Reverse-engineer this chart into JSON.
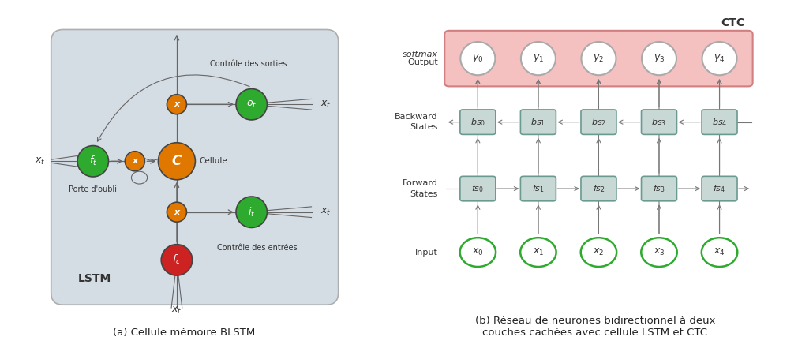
{
  "fig_width": 10.12,
  "fig_height": 4.46,
  "bg_color": "#ffffff",
  "caption_a": "(a) Cellule mémoire BLSTM",
  "caption_b": "(b) Réseau de neurones bidirectionnel à deux\ncouches cachées avec cellule LSTM et CTC",
  "lstm": {
    "box_color": "#c8d2dc",
    "orange_color": "#e07800",
    "green_color": "#2eaa2e",
    "red_color": "#cc2222",
    "lstm_label": "LSTM",
    "porte_label": "Porte d’oubli",
    "controle_sorties": "Contrôle des sorties",
    "controle_entrees": "Contrôle des entrées",
    "cellule_label": "Cellule"
  },
  "blstm": {
    "ctc_fill": "#f5c0c0",
    "ctc_edge": "#d08080",
    "output_fill": "#ffffff",
    "output_edge": "#aaaaaa",
    "bs_fill": "#c8d8d4",
    "bs_edge": "#6a9a90",
    "fs_fill": "#c8d8d4",
    "fs_edge": "#6a9a90",
    "input_fill": "#ffffff",
    "input_edge": "#2eaa2e",
    "ctc_label": "CTC",
    "softmax_label": "softmax",
    "output_label": "Output",
    "backward_label": "Backward\nStates",
    "forward_label": "Forward\nStates",
    "input_label": "Input",
    "y_labels": [
      "$y_0$",
      "$y_1$",
      "$y_2$",
      "$y_3$",
      "$y_4$"
    ],
    "bs_labels": [
      "$bs_0$",
      "$bs_1$",
      "$bs_2$",
      "$bs_3$",
      "$bs_4$"
    ],
    "fs_labels": [
      "$fs_0$",
      "$fs_1$",
      "$fs_2$",
      "$fs_3$",
      "$fs_4$"
    ],
    "x_labels": [
      "$x_0$",
      "$x_1$",
      "$x_2$",
      "$x_3$",
      "$x_4$"
    ]
  }
}
